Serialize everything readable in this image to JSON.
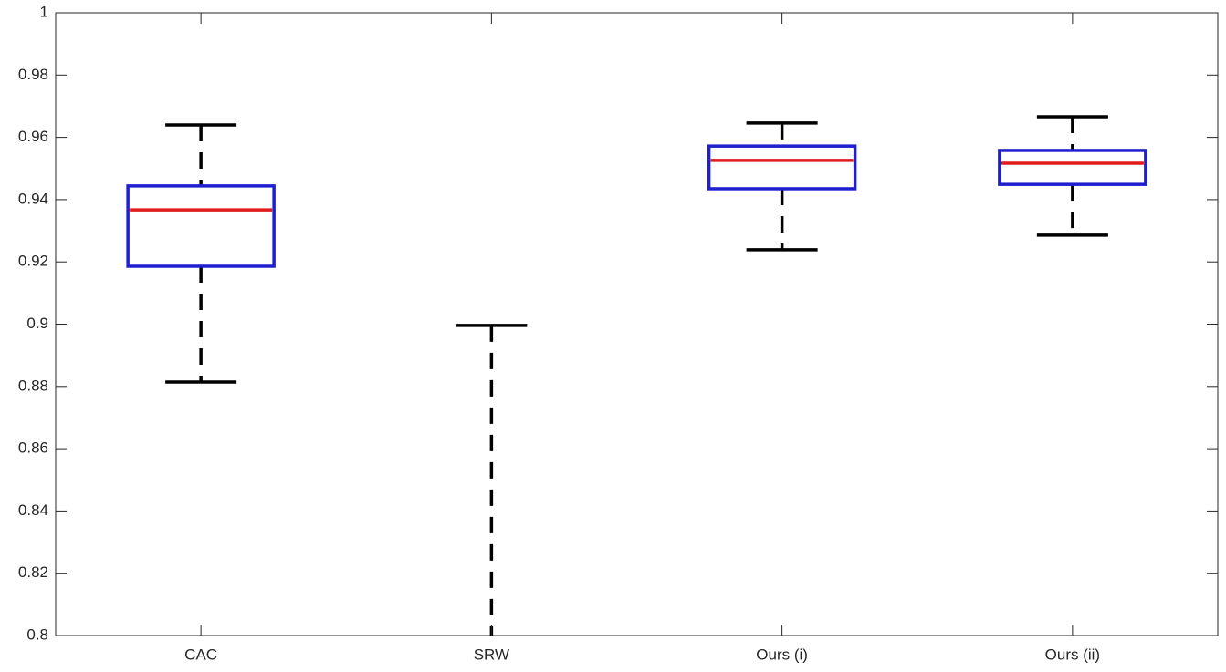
{
  "chart_data": {
    "type": "box",
    "categories": [
      "CAC",
      "SRW",
      "Ours (i)",
      "Ours (ii)"
    ],
    "boxes": [
      {
        "whisker_high": 0.964,
        "q3": 0.9444,
        "median": 0.9367,
        "q1": 0.9186,
        "whisker_low": 0.8814
      },
      {
        "whisker_high": 0.8996,
        "q3": null,
        "median": null,
        "q1": null,
        "whisker_low": null
      },
      {
        "whisker_high": 0.9646,
        "q3": 0.9572,
        "median": 0.9526,
        "q1": 0.9435,
        "whisker_low": 0.9239
      },
      {
        "whisker_high": 0.9666,
        "q3": 0.9558,
        "median": 0.9517,
        "q1": 0.9449,
        "whisker_low": 0.9286
      }
    ],
    "box_color": "#1f1fd0",
    "median_color": "#e01b1b",
    "whisker_color": "#000000",
    "ylim": [
      0.8,
      1
    ],
    "yticks": [
      0.8,
      0.82,
      0.84,
      0.86,
      0.88,
      0.9,
      0.92,
      0.94,
      0.96,
      0.98,
      1
    ],
    "grid": false
  }
}
